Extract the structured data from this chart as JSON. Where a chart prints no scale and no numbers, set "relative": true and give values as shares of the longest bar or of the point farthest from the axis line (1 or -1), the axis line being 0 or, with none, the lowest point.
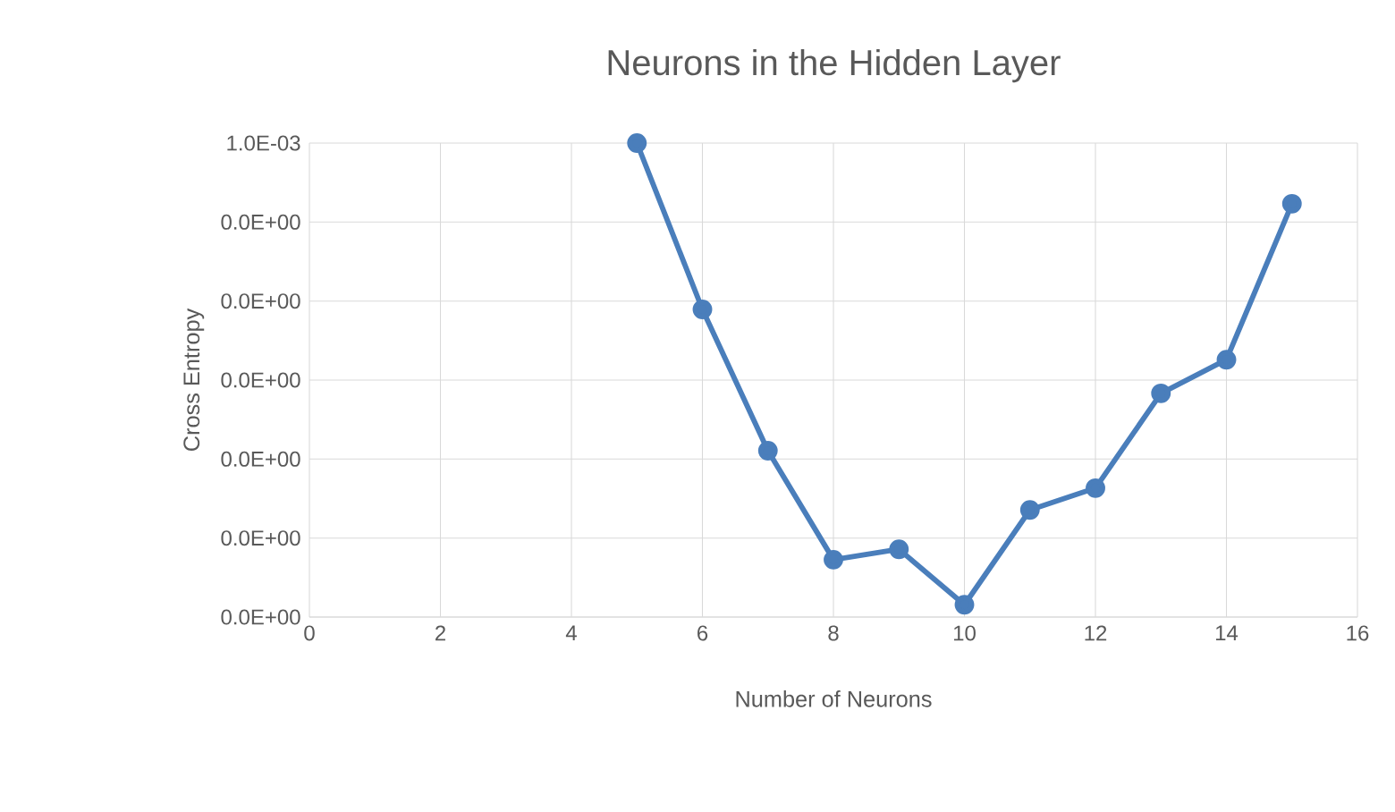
{
  "chart_data": {
    "type": "line",
    "title": "Neurons in the Hidden Layer",
    "xlabel": "Number of Neurons",
    "ylabel": "Cross Entropy",
    "x": [
      5,
      6,
      7,
      8,
      9,
      10,
      11,
      12,
      13,
      14,
      15
    ],
    "series": [
      {
        "color": "#4a7ebb",
        "values": [
          1,
          0.649,
          0.351,
          0.121,
          0.143,
          0.026,
          0.226,
          0.272,
          0.472,
          0.543,
          0.872
        ]
      }
    ],
    "relative": true,
    "annotations": [
      "1.0E-03",
      "0.0E+00",
      "0.0E+00",
      "0.0E+00",
      "0.0E+00",
      "0.0E+00",
      "0.0E+00"
    ],
    "xlim": [
      0,
      16
    ],
    "xticks": [
      0,
      2,
      4,
      6,
      8,
      10,
      12,
      14,
      16
    ],
    "grid": true,
    "marker": "circle",
    "line_style": "solid"
  }
}
